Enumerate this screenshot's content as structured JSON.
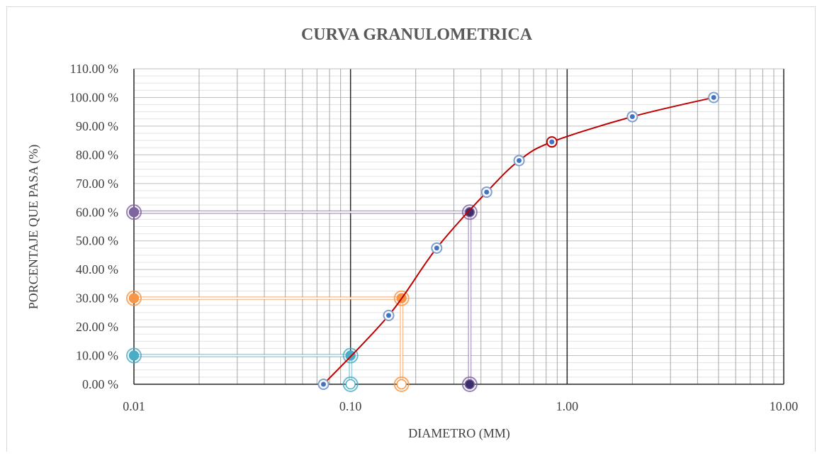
{
  "chart_data": {
    "type": "scatter",
    "title": "CURVA GRANULOMETRICA",
    "xlabel": "DIAMETRO (MM)",
    "ylabel": "PORCENTAJE QUE PASA (%)",
    "x_scale": "log",
    "xlim": [
      0.01,
      10
    ],
    "ylim": [
      0,
      110
    ],
    "x_ticks": [
      "0.01",
      "0.10",
      "1.00",
      "10.00"
    ],
    "y_ticks": [
      "0.00 %",
      "10.00 %",
      "20.00 %",
      "30.00 %",
      "40.00 %",
      "50.00 %",
      "60.00 %",
      "70.00 %",
      "80.00 %",
      "90.00 %",
      "100.00 %",
      "110.00 %"
    ],
    "grid": "log minor vertical, horizontal every 2.5 %",
    "series": [
      {
        "color": "#c00000",
        "marker_color": "#4472c4",
        "x": [
          0.075,
          0.15,
          0.25,
          0.425,
          0.6,
          0.85,
          2.0,
          4.75
        ],
        "y": [
          0.0,
          24.0,
          47.5,
          67.0,
          78.0,
          84.5,
          93.3,
          100.0
        ]
      },
      {
        "color": "#4bacc6",
        "x": [
          0.01,
          0.1,
          0.1
        ],
        "y": [
          10.0,
          10.0,
          0.0
        ]
      },
      {
        "color": "#f79646",
        "x": [
          0.01,
          0.172,
          0.172
        ],
        "y": [
          30.0,
          30.0,
          0.0
        ]
      },
      {
        "color": "#8064a2",
        "x": [
          0.01,
          0.355,
          0.355
        ],
        "y": [
          60.0,
          60.0,
          0.0
        ]
      }
    ],
    "colors": {
      "curve": "#c00000",
      "curve_marker": "#4472c4",
      "d10": "#4bacc6",
      "d30": "#f79646",
      "d60": "#8064a2",
      "d60_marker": "#3c2e6b"
    }
  }
}
